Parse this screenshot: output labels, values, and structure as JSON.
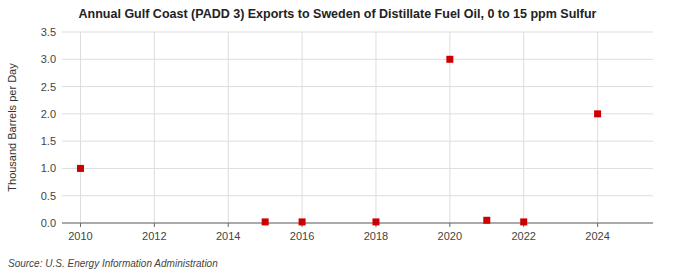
{
  "chart_data": {
    "type": "scatter",
    "title": "Annual Gulf Coast (PADD 3) Exports to Sweden of Distillate Fuel Oil, 0 to 15 ppm Sulfur",
    "y_label": "Thousand Barrels per Day",
    "source": "Source: U.S. Energy Information Administration",
    "x": [
      2010,
      2015,
      2016,
      2018,
      2020,
      2021,
      2022,
      2024
    ],
    "values": [
      1.0,
      0.02,
      0.02,
      0.02,
      3.0,
      0.05,
      0.02,
      2.0
    ],
    "xlim": [
      2009.5,
      2025.5
    ],
    "ylim": [
      0.0,
      3.5
    ],
    "xticks": [
      2010,
      2012,
      2014,
      2016,
      2018,
      2020,
      2022,
      2024
    ],
    "yticks": [
      {
        "value": 0.0,
        "label": "0.0"
      },
      0.5,
      {
        "value": 1.0,
        "label": "1.0"
      },
      1.5,
      {
        "value": 2.0,
        "label": "2.0"
      },
      2.5,
      {
        "value": 3.0,
        "label": "3.0"
      },
      3.5
    ],
    "color": "#cc0000",
    "marker": "square",
    "grid": true
  }
}
